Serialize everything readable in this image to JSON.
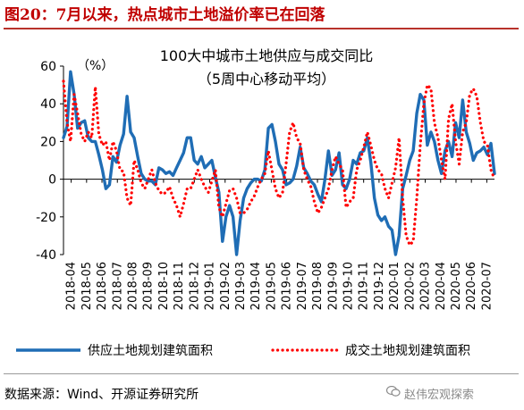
{
  "figure_title": "图20：7月以来，热点城市土地溢价率已在回落",
  "source_text": "数据来源：Wind、开源证券研究所",
  "watermark_text": "赵伟宏观探索",
  "watermark_icon": "wechat-icon",
  "colors": {
    "supply": "#1f6db5",
    "deal": "#ff0000",
    "title": "#c00000"
  },
  "chart_data": {
    "type": "line",
    "title": "100大中城市土地供应与成交同比",
    "subtitle": "（5周中心移动平均）",
    "unit_label": "（%）",
    "ylim": [
      -40,
      60
    ],
    "yticks": [
      -40,
      -20,
      0,
      20,
      40,
      60
    ],
    "xticks": [
      "2018-04",
      "2018-05",
      "2018-06",
      "2018-07",
      "2018-08",
      "2018-09",
      "2018-10",
      "2018-11",
      "2018-12",
      "2019-01",
      "2019-02",
      "2019-03",
      "2019-04",
      "2019-05",
      "2019-06",
      "2019-07",
      "2019-08",
      "2019-09",
      "2019-10",
      "2019-11",
      "2019-12",
      "2020-01",
      "2020-02",
      "2020-03",
      "2020-04",
      "2020-05",
      "2020-06",
      "2020-07"
    ],
    "grid": false,
    "legend_position": "bottom",
    "series": [
      {
        "name": "供应土地规划建筑面积",
        "style": "solid",
        "values": [
          22,
          28,
          57,
          45,
          27,
          30,
          31,
          22,
          20,
          20,
          13,
          5,
          -5,
          -3,
          12,
          9,
          18,
          24,
          44,
          25,
          22,
          12,
          3,
          0,
          -1,
          -1,
          -3,
          6,
          5,
          3,
          4,
          2,
          6,
          10,
          14,
          22,
          22,
          10,
          8,
          12,
          6,
          8,
          10,
          1,
          -7,
          -33,
          -20,
          -14,
          -20,
          -40,
          -22,
          -10,
          -5,
          -2,
          0,
          0,
          -1,
          5,
          27,
          29,
          20,
          8,
          5,
          -3,
          -2,
          0,
          7,
          17,
          6,
          3,
          -1,
          -3,
          -8,
          -12,
          0,
          15,
          2,
          5,
          14,
          -3,
          -5,
          0,
          10,
          8,
          14,
          15,
          22,
          9,
          -10,
          -19,
          -22,
          -20,
          -25,
          -27,
          -40,
          -30,
          -5,
          2,
          10,
          15,
          35,
          45,
          42,
          18,
          25,
          20,
          10,
          3,
          15,
          20,
          12,
          30,
          22,
          42,
          25,
          19,
          10,
          14,
          15,
          17,
          13,
          19,
          3
        ]
      },
      {
        "name": "成交土地规划建筑面积",
        "style": "dotted",
        "values": [
          52,
          30,
          20,
          45,
          35,
          24,
          20,
          25,
          22,
          49,
          24,
          18,
          20,
          10,
          20,
          15,
          5,
          4,
          -10,
          -14,
          10,
          5,
          -2,
          -5,
          0,
          5,
          -2,
          -6,
          -8,
          -7,
          -4,
          -10,
          -14,
          -20,
          -13,
          -5,
          -5,
          0,
          5,
          0,
          -4,
          -7,
          -1,
          5,
          -15,
          -20,
          -13,
          -6,
          -5,
          -10,
          -18,
          -18,
          -16,
          -12,
          -9,
          -4,
          0,
          3,
          15,
          5,
          -5,
          -10,
          -7,
          8,
          25,
          30,
          22,
          19,
          5,
          0,
          -4,
          -12,
          -18,
          -15,
          -10,
          -5,
          5,
          12,
          8,
          5,
          -15,
          -12,
          -10,
          5,
          10,
          17,
          25,
          18,
          10,
          5,
          3,
          -5,
          -10,
          -2,
          6,
          22,
          -10,
          -30,
          -35,
          -33,
          -10,
          18,
          40,
          50,
          48,
          30,
          22,
          10,
          0,
          32,
          40,
          20,
          8,
          25,
          30,
          45,
          48,
          44,
          30,
          20,
          18,
          5,
          0
        ]
      }
    ]
  }
}
